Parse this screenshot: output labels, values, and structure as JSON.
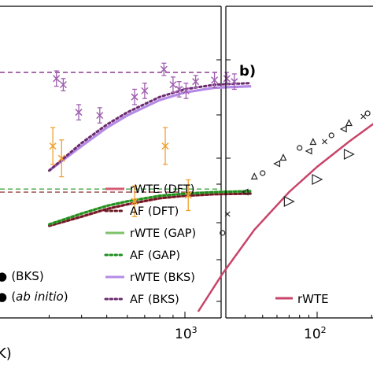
{
  "chart_data": [
    {
      "type": "line",
      "panel_label": "",
      "x_scale": "log",
      "x_tick_labels": [
        {
          "base": "10",
          "exp": "3",
          "value": 1000
        }
      ],
      "xlabel_fragment": "K)",
      "xlim": [
        300,
        1800
      ],
      "ylim": [
        0,
        1.0
      ],
      "series": [
        {
          "name": "rWTE (DFT)",
          "color": "#d45a72",
          "style": "solid",
          "x": [
            300,
            400,
            500,
            600,
            800,
            1000,
            1300,
            1800
          ],
          "y": [
            0.3,
            0.33,
            0.355,
            0.37,
            0.39,
            0.398,
            0.403,
            0.405
          ]
        },
        {
          "name": "AF (DFT)",
          "color": "#6b1a24",
          "style": "dotted",
          "x": [
            300,
            400,
            500,
            600,
            800,
            1000,
            1300,
            1800
          ],
          "y": [
            0.3,
            0.33,
            0.355,
            0.37,
            0.39,
            0.398,
            0.403,
            0.405
          ]
        },
        {
          "name": "rWTE (GAP)",
          "color": "#7ec26a",
          "style": "solid",
          "x": [
            300,
            400,
            500,
            600,
            800,
            1000,
            1300,
            1800
          ],
          "y": [
            0.305,
            0.34,
            0.365,
            0.38,
            0.398,
            0.405,
            0.41,
            0.413
          ]
        },
        {
          "name": "AF (GAP)",
          "color": "#1f8f1f",
          "style": "dotted",
          "x": [
            300,
            400,
            500,
            600,
            800,
            1000,
            1300,
            1800
          ],
          "y": [
            0.305,
            0.34,
            0.365,
            0.38,
            0.398,
            0.405,
            0.41,
            0.413
          ]
        },
        {
          "name": "rWTE (BKS)",
          "color": "#b58ae6",
          "style": "solid",
          "x": [
            300,
            400,
            500,
            600,
            800,
            1000,
            1300,
            1800
          ],
          "y": [
            0.48,
            0.56,
            0.62,
            0.66,
            0.71,
            0.735,
            0.75,
            0.755
          ]
        },
        {
          "name": "AF (BKS)",
          "color": "#6a2c6e",
          "style": "dotted",
          "x": [
            300,
            400,
            500,
            600,
            800,
            1000,
            1300,
            1800
          ],
          "y": [
            0.48,
            0.57,
            0.63,
            0.67,
            0.72,
            0.745,
            0.76,
            0.765
          ]
        }
      ],
      "reference_lines": [
        {
          "color": "#8b3a8f",
          "y": 0.8
        },
        {
          "color": "#4dab4d",
          "y": 0.42
        },
        {
          "color": "#a05050",
          "y": 0.41
        }
      ],
      "scatter_series": [
        {
          "name": "(BKS)",
          "color": "#a060b0",
          "marker": "x",
          "points": [
            {
              "x": 320,
              "y": 0.78,
              "err": 0.025
            },
            {
              "x": 340,
              "y": 0.76,
              "err": 0.02
            },
            {
              "x": 390,
              "y": 0.67,
              "err": 0.025
            },
            {
              "x": 470,
              "y": 0.66,
              "err": 0.025
            },
            {
              "x": 640,
              "y": 0.72,
              "err": 0.025
            },
            {
              "x": 700,
              "y": 0.74,
              "err": 0.025
            },
            {
              "x": 830,
              "y": 0.81,
              "err": 0.02
            },
            {
              "x": 900,
              "y": 0.76,
              "err": 0.025
            },
            {
              "x": 950,
              "y": 0.745,
              "err": 0.025
            },
            {
              "x": 1010,
              "y": 0.74,
              "err": 0.025
            },
            {
              "x": 1100,
              "y": 0.77,
              "err": 0.02
            },
            {
              "x": 1300,
              "y": 0.775,
              "err": 0.025
            },
            {
              "x": 1450,
              "y": 0.78,
              "err": 0.02
            },
            {
              "x": 1550,
              "y": 0.77,
              "err": 0.025
            }
          ]
        },
        {
          "name": "(ab initio)",
          "color": "#f0a030",
          "marker": "x",
          "points": [
            {
              "x": 310,
              "y": 0.56,
              "err": 0.06
            },
            {
              "x": 335,
              "y": 0.52,
              "err": 0.06
            },
            {
              "x": 640,
              "y": 0.38,
              "err": 0.05
            },
            {
              "x": 840,
              "y": 0.56,
              "err": 0.06
            },
            {
              "x": 1030,
              "y": 0.4,
              "err": 0.05
            }
          ]
        }
      ],
      "legend_partial": [
        "(BKS)",
        "(ab initio)"
      ]
    },
    {
      "type": "scatter",
      "panel_label": "b)",
      "x_scale": "log",
      "x_tick_labels": [
        {
          "base": "10",
          "exp": "2",
          "value": 100
        }
      ],
      "xlim": [
        20,
        400
      ],
      "ylim": [
        0,
        1.0
      ],
      "series": [
        {
          "name": "rWTE",
          "color": "#c8456a",
          "style": "solid",
          "x": [
            22,
            30,
            45,
            70,
            100,
            150,
            220,
            300
          ],
          "y": [
            0.02,
            0.14,
            0.28,
            0.4,
            0.48,
            0.56,
            0.63,
            0.67
          ]
        }
      ],
      "marker_series": [
        {
          "marker": "triangle-right",
          "color": "#222",
          "points": [
            [
              70,
              0.37
            ],
            [
              100,
              0.44
            ],
            [
              150,
              0.52
            ],
            [
              220,
              0.6
            ]
          ]
        },
        {
          "marker": "circle",
          "color": "#222",
          "points": [
            [
              30,
              0.27
            ],
            [
              50,
              0.46
            ],
            [
              80,
              0.54
            ],
            [
              120,
              0.58
            ],
            [
              190,
              0.65
            ],
            [
              260,
              0.68
            ]
          ]
        },
        {
          "marker": "triangle-up",
          "color": "#222",
          "points": [
            [
              45,
              0.45
            ],
            [
              65,
              0.51
            ],
            [
              95,
              0.56
            ],
            [
              150,
              0.62
            ],
            [
              210,
              0.65
            ]
          ]
        },
        {
          "marker": "triangle-left",
          "color": "#222",
          "points": [
            [
              40,
              0.4
            ],
            [
              60,
              0.49
            ],
            [
              90,
              0.53
            ],
            [
              140,
              0.6
            ],
            [
              205,
              0.66
            ]
          ]
        },
        {
          "marker": "x-small",
          "color": "#222",
          "points": [
            [
              32,
              0.33
            ],
            [
              110,
              0.56
            ],
            [
              180,
              0.64
            ]
          ]
        }
      ],
      "legend": [
        "rWTE"
      ]
    }
  ]
}
